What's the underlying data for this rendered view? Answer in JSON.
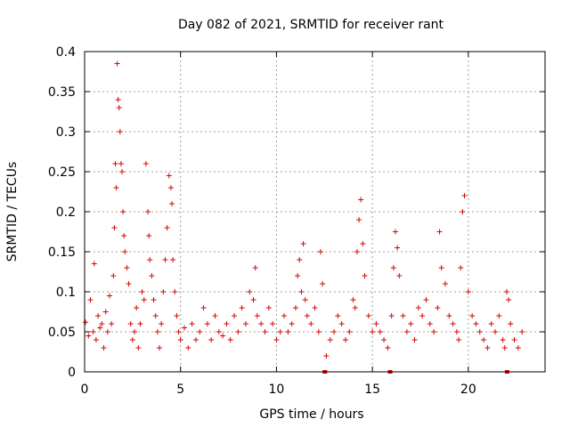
{
  "chart_data": {
    "type": "scatter",
    "title": "Day 082 of 2021, SRMTID for receiver rant",
    "xlabel": "GPS time / hours",
    "ylabel": "SRMTID / TECUs",
    "xlim": [
      0,
      24
    ],
    "ylim": [
      0,
      0.4
    ],
    "grid": true,
    "marker": "plus",
    "color": "#e00000",
    "x_ticks": [
      0,
      5,
      10,
      15,
      20
    ],
    "x_tick_labels": [
      "0",
      "5",
      "10",
      "15",
      "20"
    ],
    "y_ticks": [
      0,
      0.05,
      0.1,
      0.15,
      0.2,
      0.25,
      0.3,
      0.35,
      0.4
    ],
    "y_tick_labels": [
      "0",
      "0.05",
      "0.1",
      "0.15",
      "0.2",
      "0.25",
      "0.3",
      "0.35",
      "0.4"
    ],
    "x_range_of_data": [
      0,
      22.8
    ],
    "series": [
      {
        "name": "SRMTID",
        "x": [
          0.05,
          0.2,
          0.3,
          0.45,
          0.5,
          0.6,
          0.7,
          0.8,
          0.9,
          1.0,
          1.1,
          1.2,
          1.3,
          1.4,
          1.5,
          1.55,
          1.6,
          1.65,
          1.7,
          1.75,
          1.8,
          1.85,
          1.9,
          1.95,
          2.0,
          2.05,
          2.1,
          2.2,
          2.3,
          2.4,
          2.5,
          2.6,
          2.7,
          2.8,
          2.9,
          3.0,
          3.1,
          3.2,
          3.3,
          3.35,
          3.4,
          3.5,
          3.6,
          3.7,
          3.8,
          3.9,
          4.0,
          4.1,
          4.2,
          4.3,
          4.4,
          4.5,
          4.55,
          4.6,
          4.7,
          4.8,
          4.9,
          5.0,
          5.2,
          5.4,
          5.6,
          5.8,
          6.0,
          6.2,
          6.4,
          6.6,
          6.8,
          7.0,
          7.2,
          7.4,
          7.6,
          7.8,
          8.0,
          8.2,
          8.4,
          8.6,
          8.8,
          8.9,
          9.0,
          9.2,
          9.4,
          9.6,
          9.8,
          10.0,
          10.2,
          10.4,
          10.6,
          10.8,
          11.0,
          11.1,
          11.2,
          11.3,
          11.4,
          11.5,
          11.6,
          11.8,
          12.0,
          12.2,
          12.3,
          12.4,
          12.6,
          12.8,
          13.0,
          13.2,
          13.4,
          13.6,
          13.8,
          14.0,
          14.1,
          14.2,
          14.3,
          14.4,
          14.5,
          14.6,
          14.8,
          15.0,
          15.2,
          15.4,
          15.6,
          15.8,
          16.0,
          16.1,
          16.2,
          16.3,
          16.4,
          16.6,
          16.8,
          17.0,
          17.2,
          17.4,
          17.6,
          17.8,
          18.0,
          18.2,
          18.4,
          18.5,
          18.6,
          18.8,
          19.0,
          19.2,
          19.4,
          19.5,
          19.6,
          19.7,
          19.8,
          20.0,
          20.2,
          20.4,
          20.6,
          20.8,
          21.0,
          21.2,
          21.4,
          21.6,
          21.8,
          21.9,
          22.0,
          22.1,
          22.2,
          22.4,
          22.6,
          22.8
        ],
        "y": [
          0.062,
          0.045,
          0.09,
          0.05,
          0.135,
          0.04,
          0.07,
          0.055,
          0.06,
          0.03,
          0.075,
          0.05,
          0.095,
          0.06,
          0.12,
          0.18,
          0.26,
          0.23,
          0.385,
          0.34,
          0.33,
          0.3,
          0.26,
          0.25,
          0.2,
          0.17,
          0.15,
          0.13,
          0.11,
          0.06,
          0.04,
          0.05,
          0.08,
          0.03,
          0.06,
          0.1,
          0.09,
          0.26,
          0.2,
          0.17,
          0.14,
          0.12,
          0.09,
          0.07,
          0.05,
          0.03,
          0.06,
          0.1,
          0.14,
          0.18,
          0.245,
          0.23,
          0.21,
          0.14,
          0.1,
          0.07,
          0.05,
          0.04,
          0.055,
          0.03,
          0.06,
          0.04,
          0.05,
          0.08,
          0.06,
          0.04,
          0.07,
          0.05,
          0.045,
          0.06,
          0.04,
          0.07,
          0.05,
          0.08,
          0.06,
          0.1,
          0.09,
          0.13,
          0.07,
          0.06,
          0.05,
          0.08,
          0.06,
          0.04,
          0.05,
          0.07,
          0.05,
          0.06,
          0.08,
          0.12,
          0.14,
          0.1,
          0.16,
          0.09,
          0.07,
          0.06,
          0.08,
          0.05,
          0.15,
          0.11,
          0.02,
          0.04,
          0.05,
          0.07,
          0.06,
          0.04,
          0.05,
          0.09,
          0.08,
          0.15,
          0.19,
          0.215,
          0.16,
          0.12,
          0.07,
          0.05,
          0.06,
          0.05,
          0.04,
          0.03,
          0.07,
          0.13,
          0.175,
          0.155,
          0.12,
          0.07,
          0.05,
          0.06,
          0.04,
          0.08,
          0.07,
          0.09,
          0.06,
          0.05,
          0.08,
          0.175,
          0.13,
          0.11,
          0.07,
          0.06,
          0.05,
          0.04,
          0.13,
          0.2,
          0.22,
          0.1,
          0.07,
          0.06,
          0.05,
          0.04,
          0.03,
          0.06,
          0.05,
          0.07,
          0.04,
          0.03,
          0.1,
          0.09,
          0.06,
          0.04,
          0.03,
          0.05
        ]
      }
    ],
    "data_gaps_x": [
      12.5,
      15.9,
      22.0
    ]
  }
}
